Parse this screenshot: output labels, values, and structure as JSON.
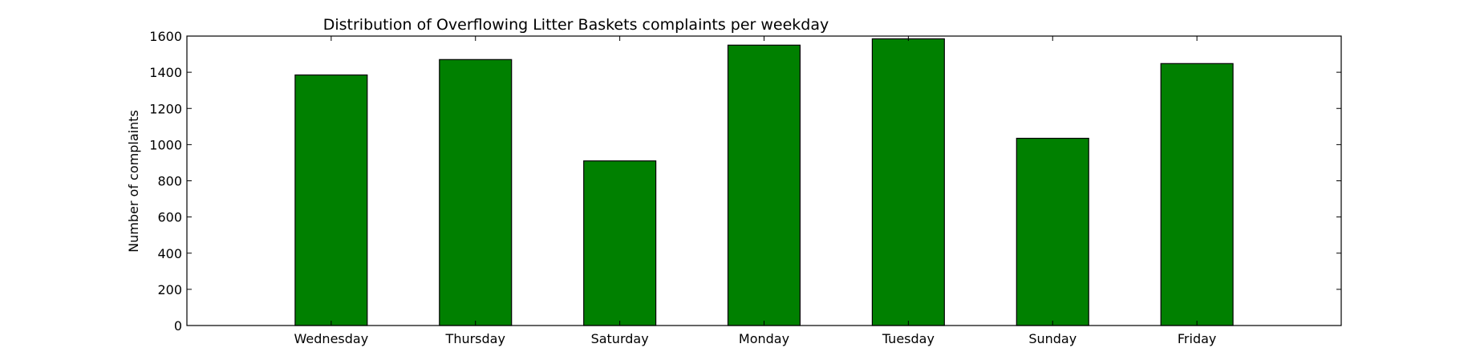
{
  "chart_data": {
    "type": "bar",
    "title": "Distribution of  Overflowing Litter Baskets complaints per weekday",
    "xlabel": "",
    "ylabel": "Number of complaints",
    "categories": [
      "Wednesday",
      "Thursday",
      "Saturday",
      "Monday",
      "Tuesday",
      "Sunday",
      "Friday"
    ],
    "values": [
      1385,
      1470,
      910,
      1550,
      1585,
      1035,
      1448
    ],
    "ylim": [
      0,
      1600
    ],
    "yticks": [
      0,
      200,
      400,
      600,
      800,
      1000,
      1200,
      1400,
      1600
    ],
    "grid": false,
    "legend": "none",
    "bar_color": "#008000"
  }
}
